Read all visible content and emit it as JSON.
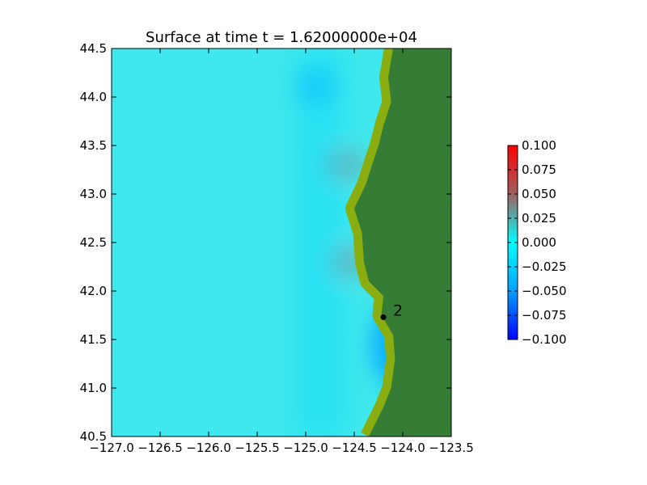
{
  "chart_data": {
    "type": "heatmap",
    "title": "Surface at time t = 1.62000000e+04",
    "xlabel": "",
    "ylabel": "",
    "xlim": [
      -127.0,
      -123.5
    ],
    "ylim": [
      40.5,
      44.5
    ],
    "x_ticks": [
      "−127.0",
      "−126.5",
      "−126.0",
      "−125.5",
      "−125.0",
      "−124.5",
      "−124.0",
      "−123.5"
    ],
    "y_ticks": [
      "40.5",
      "41.0",
      "41.5",
      "42.0",
      "42.5",
      "43.0",
      "43.5",
      "44.0",
      "44.5"
    ],
    "colorbar": {
      "min": -0.1,
      "max": 0.1,
      "tick_labels": [
        "0.100",
        "0.075",
        "0.050",
        "0.025",
        "0.000",
        "−0.025",
        "−0.050",
        "−0.075",
        "−0.100"
      ],
      "colors": [
        "#0000ff",
        "#00a0ff",
        "#00ffff",
        "#a06060",
        "#ff0000"
      ]
    },
    "ocean_color": "#3fe8ec",
    "land_color": "#357c34",
    "shore_color": "#8aad12",
    "coastline": [
      [
        -124.1,
        44.5
      ],
      [
        -124.15,
        44.2
      ],
      [
        -124.12,
        43.95
      ],
      [
        -124.2,
        43.7
      ],
      [
        -124.25,
        43.5
      ],
      [
        -124.3,
        43.35
      ],
      [
        -124.38,
        43.1
      ],
      [
        -124.5,
        42.85
      ],
      [
        -124.42,
        42.6
      ],
      [
        -124.4,
        42.3
      ],
      [
        -124.35,
        42.1
      ],
      [
        -124.2,
        41.95
      ],
      [
        -124.22,
        41.75
      ],
      [
        -124.1,
        41.55
      ],
      [
        -124.08,
        41.3
      ],
      [
        -124.12,
        41.0
      ],
      [
        -124.2,
        40.8
      ],
      [
        -124.35,
        40.5
      ]
    ],
    "anomalies": [
      {
        "x": -124.0,
        "y": 41.45,
        "value": -0.07
      },
      {
        "x": -124.9,
        "y": 44.1,
        "value": -0.04
      },
      {
        "x": -124.6,
        "y": 43.3,
        "value": 0.03
      },
      {
        "x": -124.55,
        "y": 42.3,
        "value": 0.03
      }
    ],
    "gauges": [
      {
        "label": "2",
        "x": -124.2,
        "y": 41.73
      }
    ]
  }
}
